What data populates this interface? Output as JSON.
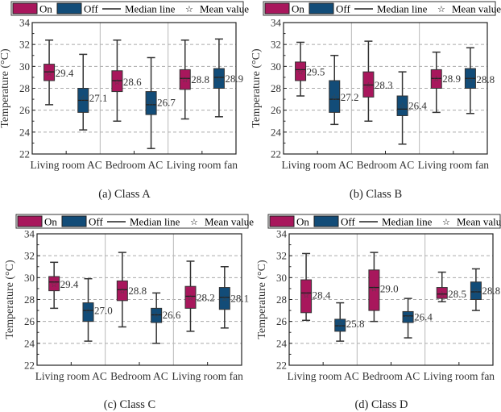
{
  "colors": {
    "on": "#a8175c",
    "off": "#124c78",
    "grid": "#aaaaaa",
    "divider": "#b8b8b8"
  },
  "legend": {
    "on": "On",
    "off": "Off",
    "median": "Median line",
    "mean": "Mean value",
    "mean_symbol": "☆"
  },
  "chart_data": [
    {
      "type": "boxplot",
      "caption": "(a) Class A",
      "ylabel": "Temperature (°C)",
      "ylim": [
        22,
        34
      ],
      "yticks": [
        "22",
        "24",
        "26",
        "28",
        "30",
        "32",
        "34"
      ],
      "grid": "dashed horizontal",
      "legend_position": "top",
      "categories": [
        "Living room AC",
        "Bedroom AC",
        "Living room fan"
      ],
      "series": [
        {
          "name": "On",
          "boxes": [
            {
              "min": 26.5,
              "q1": 28.7,
              "median": 29.5,
              "q3": 30.2,
              "max": 32.4,
              "mean": 29.4,
              "label": "29.4"
            },
            {
              "min": 25.0,
              "q1": 27.7,
              "median": 28.7,
              "q3": 29.6,
              "max": 32.4,
              "mean": 28.6,
              "label": "28.6"
            },
            {
              "min": 25.2,
              "q1": 27.9,
              "median": 28.9,
              "q3": 29.7,
              "max": 32.4,
              "mean": 28.8,
              "label": "28.8"
            }
          ]
        },
        {
          "name": "Off",
          "boxes": [
            {
              "min": 24.2,
              "q1": 25.8,
              "median": 26.9,
              "q3": 28.0,
              "max": 31.1,
              "mean": 27.1,
              "label": "27.1"
            },
            {
              "min": 22.5,
              "q1": 25.6,
              "median": 26.5,
              "q3": 27.7,
              "max": 30.8,
              "mean": 26.7,
              "label": "26.7"
            },
            {
              "min": 25.4,
              "q1": 28.0,
              "median": 29.0,
              "q3": 29.8,
              "max": 32.5,
              "mean": 28.9,
              "label": "28.9"
            }
          ]
        }
      ]
    },
    {
      "type": "boxplot",
      "caption": "(b) Class B",
      "ylabel": "Temperature (°C)",
      "ylim": [
        22,
        34
      ],
      "yticks": [
        "22",
        "24",
        "26",
        "28",
        "30",
        "32",
        "34"
      ],
      "grid": "dashed horizontal",
      "legend_position": "top",
      "categories": [
        "Living room AC",
        "Bedroom AC",
        "Living room fan"
      ],
      "series": [
        {
          "name": "On",
          "boxes": [
            {
              "min": 27.3,
              "q1": 28.7,
              "median": 29.7,
              "q3": 30.4,
              "max": 32.2,
              "mean": 29.5,
              "label": "29.5"
            },
            {
              "min": 25.0,
              "q1": 27.2,
              "median": 28.3,
              "q3": 29.5,
              "max": 32.3,
              "mean": 28.3,
              "label": "28.3"
            },
            {
              "min": 25.8,
              "q1": 28.0,
              "median": 28.9,
              "q3": 29.7,
              "max": 31.3,
              "mean": 28.9,
              "label": "28.9"
            }
          ]
        },
        {
          "name": "Off",
          "boxes": [
            {
              "min": 24.7,
              "q1": 25.8,
              "median": 27.0,
              "q3": 28.7,
              "max": 31.0,
              "mean": 27.2,
              "label": "27.2"
            },
            {
              "min": 22.9,
              "q1": 25.5,
              "median": 26.1,
              "q3": 27.3,
              "max": 29.5,
              "mean": 26.4,
              "label": "26.4"
            },
            {
              "min": 25.7,
              "q1": 28.0,
              "median": 28.9,
              "q3": 29.8,
              "max": 31.7,
              "mean": 28.8,
              "label": "28.8"
            }
          ]
        }
      ]
    },
    {
      "type": "boxplot",
      "caption": "(c) Class C",
      "ylabel": "Temperature (°C)",
      "ylim": [
        22,
        34
      ],
      "yticks": [
        "22",
        "24",
        "26",
        "28",
        "30",
        "32",
        "34"
      ],
      "grid": "dashed horizontal",
      "legend_position": "top",
      "categories": [
        "Living room AC",
        "Bedroom AC",
        "Living room fan"
      ],
      "series": [
        {
          "name": "On",
          "boxes": [
            {
              "min": 27.2,
              "q1": 28.8,
              "median": 29.6,
              "q3": 30.1,
              "max": 31.4,
              "mean": 29.4,
              "label": "29.4"
            },
            {
              "min": 25.5,
              "q1": 27.9,
              "median": 28.9,
              "q3": 29.7,
              "max": 32.3,
              "mean": 28.8,
              "label": "28.8"
            },
            {
              "min": 25.1,
              "q1": 27.2,
              "median": 28.3,
              "q3": 29.2,
              "max": 31.5,
              "mean": 28.2,
              "label": "28.2"
            }
          ]
        },
        {
          "name": "Off",
          "boxes": [
            {
              "min": 24.2,
              "q1": 26.0,
              "median": 27.0,
              "q3": 27.7,
              "max": 29.9,
              "mean": 27.0,
              "label": "27.0"
            },
            {
              "min": 24.0,
              "q1": 25.9,
              "median": 26.6,
              "q3": 27.2,
              "max": 28.6,
              "mean": 26.6,
              "label": "26.6"
            },
            {
              "min": 25.4,
              "q1": 27.1,
              "median": 28.2,
              "q3": 29.1,
              "max": 31.0,
              "mean": 28.1,
              "label": "28.1"
            }
          ]
        }
      ]
    },
    {
      "type": "boxplot",
      "caption": "(d) Class D",
      "ylabel": "Temperature (°C)",
      "ylim": [
        22,
        34
      ],
      "yticks": [
        "22",
        "24",
        "26",
        "28",
        "30",
        "32",
        "34"
      ],
      "grid": "dashed horizontal",
      "legend_position": "top",
      "categories": [
        "Living room AC",
        "Bedroom AC",
        "Living room fan"
      ],
      "series": [
        {
          "name": "On",
          "boxes": [
            {
              "min": 26.1,
              "q1": 26.8,
              "median": 28.6,
              "q3": 29.8,
              "max": 32.2,
              "mean": 28.4,
              "label": "28.4"
            },
            {
              "min": 26.0,
              "q1": 27.0,
              "median": 29.1,
              "q3": 30.7,
              "max": 32.3,
              "mean": 29.0,
              "label": "29.0"
            },
            {
              "min": 27.8,
              "q1": 28.1,
              "median": 28.5,
              "q3": 29.1,
              "max": 30.5,
              "mean": 28.5,
              "label": "28.5"
            }
          ]
        },
        {
          "name": "Off",
          "boxes": [
            {
              "min": 24.2,
              "q1": 25.1,
              "median": 25.6,
              "q3": 26.2,
              "max": 27.7,
              "mean": 25.8,
              "label": "25.8"
            },
            {
              "min": 24.5,
              "q1": 25.9,
              "median": 26.5,
              "q3": 26.9,
              "max": 28.1,
              "mean": 26.4,
              "label": "26.4"
            },
            {
              "min": 27.0,
              "q1": 28.0,
              "median": 28.7,
              "q3": 29.6,
              "max": 30.8,
              "mean": 28.8,
              "label": "28.8"
            }
          ]
        }
      ]
    }
  ]
}
